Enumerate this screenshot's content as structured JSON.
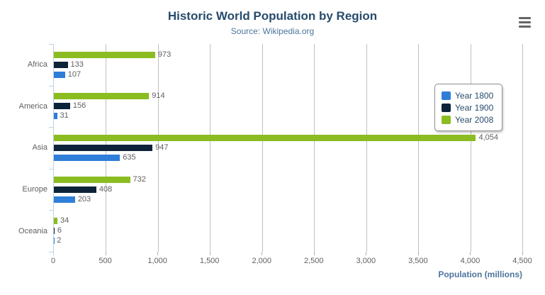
{
  "title": "Historic World Population by Region",
  "subtitle": "Source: Wikipedia.org",
  "export_menu": {
    "icon": "hamburger-menu-icon"
  },
  "chart_data": {
    "type": "bar",
    "orientation": "horizontal",
    "title": "Historic World Population by Region",
    "subtitle": "Source: Wikipedia.org",
    "categories": [
      "Africa",
      "America",
      "Asia",
      "Europe",
      "Oceania"
    ],
    "series": [
      {
        "name": "Year 1800",
        "color": "#2f7ed8",
        "values": [
          107,
          31,
          635,
          203,
          2
        ]
      },
      {
        "name": "Year 1900",
        "color": "#0d233a",
        "values": [
          133,
          156,
          947,
          408,
          6
        ]
      },
      {
        "name": "Year 2008",
        "color": "#8bbc21",
        "values": [
          973,
          914,
          4054,
          732,
          34
        ]
      }
    ],
    "bar_order_top_to_bottom": [
      "Year 2008",
      "Year 1900",
      "Year 1800"
    ],
    "xlabel": "Population (millions)",
    "ylabel": "",
    "xlim": [
      0,
      4500
    ],
    "tick_interval": 500,
    "tick_labels": [
      "0",
      "500",
      "1,000",
      "1,500",
      "2,000",
      "2,500",
      "3,000",
      "3,500",
      "4,000",
      "4,500"
    ],
    "grid": true,
    "legend_position": "right",
    "data_labels_shown": true
  },
  "colors": {
    "title": "#274b6d",
    "subtitle": "#4d759e",
    "axis_title": "#4d759e",
    "labels": "#606060",
    "gridline": "#c0c0c0",
    "category_axis_line": "#c0d0e0",
    "legend_border": "#909090",
    "export_icon": "#666666",
    "background": "#ffffff"
  }
}
